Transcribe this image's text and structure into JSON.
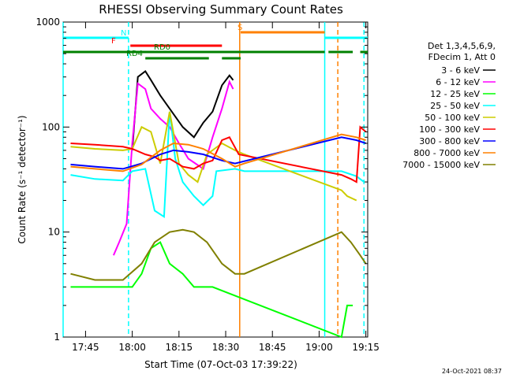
{
  "chart_data": {
    "type": "line",
    "title": "RHESSI Observing Summary Count Rates",
    "xlabel": "Start Time (07-Oct-03 17:39:22)",
    "ylabel": "Count Rate (s⁻¹ detector⁻¹)",
    "yscale": "log",
    "ylim": [
      1,
      1000
    ],
    "xlim_minutes": [
      17.63,
      19.26
    ],
    "x_ticks": [
      "17:45",
      "18:00",
      "18:15",
      "18:30",
      "18:45",
      "19:00",
      "19:15"
    ],
    "y_ticks": [
      "1",
      "10",
      "100",
      "1000"
    ],
    "legend_header": [
      "Det 1,3,4,5,6,9,",
      "FDecim 1, Att 0"
    ],
    "legend_position": "right",
    "footer_timestamp": "24-Oct-2021 08:37",
    "series": [
      {
        "name": "3 - 6 keV",
        "color": "#000000",
        "points": [
          [
            18.0,
            60
          ],
          [
            18.03,
            300
          ],
          [
            18.07,
            340
          ],
          [
            18.1,
            280
          ],
          [
            18.15,
            200
          ],
          [
            18.2,
            150
          ],
          [
            18.27,
            100
          ],
          [
            18.33,
            80
          ],
          [
            18.38,
            110
          ],
          [
            18.43,
            140
          ],
          [
            18.48,
            250
          ],
          [
            18.52,
            310
          ],
          [
            18.54,
            280
          ]
        ]
      },
      {
        "name": "6 - 12 keV",
        "color": "#ff00ff",
        "points": [
          [
            17.9,
            6
          ],
          [
            17.93,
            8
          ],
          [
            17.97,
            12
          ],
          [
            18.0,
            70
          ],
          [
            18.03,
            260
          ],
          [
            18.07,
            230
          ],
          [
            18.1,
            150
          ],
          [
            18.15,
            120
          ],
          [
            18.2,
            100
          ],
          [
            18.25,
            70
          ],
          [
            18.3,
            50
          ],
          [
            18.38,
            40
          ],
          [
            18.43,
            80
          ],
          [
            18.48,
            150
          ],
          [
            18.52,
            270
          ],
          [
            18.54,
            230
          ]
        ]
      },
      {
        "name": "12 - 25 keV",
        "color": "#00ff00",
        "points": [
          [
            17.67,
            3
          ],
          [
            18.0,
            3
          ],
          [
            18.05,
            4
          ],
          [
            18.1,
            7
          ],
          [
            18.15,
            8
          ],
          [
            18.2,
            5
          ],
          [
            18.27,
            4
          ],
          [
            18.33,
            3
          ],
          [
            18.43,
            3
          ],
          [
            19.12,
            1
          ],
          [
            19.15,
            2
          ],
          [
            19.18,
            2
          ]
        ]
      },
      {
        "name": "25 - 50 keV",
        "color": "#00ffff",
        "points": [
          [
            17.67,
            35
          ],
          [
            17.8,
            32
          ],
          [
            17.95,
            31
          ],
          [
            18.0,
            38
          ],
          [
            18.07,
            40
          ],
          [
            18.12,
            16
          ],
          [
            18.17,
            14
          ],
          [
            18.2,
            140
          ],
          [
            18.23,
            50
          ],
          [
            18.27,
            30
          ],
          [
            18.33,
            22
          ],
          [
            18.38,
            18
          ],
          [
            18.43,
            22
          ],
          [
            18.45,
            38
          ],
          [
            18.55,
            40
          ],
          [
            18.6,
            38
          ],
          [
            19.12,
            38
          ],
          [
            19.2,
            34
          ],
          [
            19.24,
            30
          ]
        ]
      },
      {
        "name": "50 - 100 keV",
        "color": "#cccc00",
        "points": [
          [
            17.67,
            65
          ],
          [
            17.8,
            62
          ],
          [
            17.95,
            60
          ],
          [
            18.0,
            62
          ],
          [
            18.05,
            100
          ],
          [
            18.1,
            90
          ],
          [
            18.15,
            45
          ],
          [
            18.2,
            140
          ],
          [
            18.25,
            45
          ],
          [
            18.3,
            35
          ],
          [
            18.35,
            30
          ],
          [
            18.4,
            55
          ],
          [
            18.48,
            70
          ],
          [
            18.55,
            60
          ],
          [
            18.6,
            55
          ],
          [
            19.12,
            25
          ],
          [
            19.15,
            22
          ],
          [
            19.2,
            20
          ]
        ]
      },
      {
        "name": "100 - 300 keV",
        "color": "#ff0000",
        "points": [
          [
            17.67,
            70
          ],
          [
            17.8,
            68
          ],
          [
            17.95,
            65
          ],
          [
            18.0,
            62
          ],
          [
            18.07,
            55
          ],
          [
            18.12,
            52
          ],
          [
            18.15,
            48
          ],
          [
            18.2,
            50
          ],
          [
            18.27,
            42
          ],
          [
            18.33,
            40
          ],
          [
            18.38,
            45
          ],
          [
            18.43,
            48
          ],
          [
            18.48,
            75
          ],
          [
            18.52,
            80
          ],
          [
            18.57,
            55
          ],
          [
            19.12,
            35
          ],
          [
            19.17,
            32
          ],
          [
            19.2,
            30
          ],
          [
            19.22,
            100
          ],
          [
            19.25,
            90
          ]
        ]
      },
      {
        "name": "300 - 800 keV",
        "color": "#0000ff",
        "points": [
          [
            17.67,
            44
          ],
          [
            17.8,
            42
          ],
          [
            17.95,
            40
          ],
          [
            18.05,
            45
          ],
          [
            18.15,
            55
          ],
          [
            18.22,
            60
          ],
          [
            18.3,
            58
          ],
          [
            18.38,
            55
          ],
          [
            18.48,
            48
          ],
          [
            18.55,
            45
          ],
          [
            19.12,
            80
          ],
          [
            19.2,
            75
          ],
          [
            19.25,
            70
          ]
        ]
      },
      {
        "name": "800 - 7000 keV",
        "color": "#ff8000",
        "points": [
          [
            17.67,
            42
          ],
          [
            17.8,
            40
          ],
          [
            17.95,
            38
          ],
          [
            18.05,
            44
          ],
          [
            18.15,
            60
          ],
          [
            18.22,
            70
          ],
          [
            18.3,
            68
          ],
          [
            18.38,
            62
          ],
          [
            18.48,
            50
          ],
          [
            18.55,
            42
          ],
          [
            18.6,
            45
          ],
          [
            19.12,
            85
          ],
          [
            19.2,
            80
          ],
          [
            19.25,
            75
          ]
        ]
      },
      {
        "name": "7000 - 15000 keV",
        "color": "#808000",
        "points": [
          [
            17.67,
            4
          ],
          [
            17.8,
            3.5
          ],
          [
            17.95,
            3.5
          ],
          [
            18.05,
            5
          ],
          [
            18.12,
            8
          ],
          [
            18.2,
            10
          ],
          [
            18.27,
            10.5
          ],
          [
            18.33,
            10
          ],
          [
            18.4,
            8
          ],
          [
            18.48,
            5
          ],
          [
            18.55,
            4
          ],
          [
            18.6,
            4
          ],
          [
            19.12,
            10
          ],
          [
            19.17,
            8
          ],
          [
            19.22,
            6
          ],
          [
            19.25,
            5
          ]
        ]
      }
    ],
    "flags": [
      {
        "label": "N",
        "color": "#00ffff",
        "segments": [
          [
            17.63,
            17.98
          ],
          [
            19.03,
            19.26
          ]
        ]
      },
      {
        "label": "S",
        "color": "#ff8000",
        "segments": [
          [
            18.58,
            19.03
          ]
        ]
      },
      {
        "label": "F",
        "color": "#ff0000",
        "segments": [
          [
            17.99,
            18.48
          ]
        ]
      },
      {
        "label": "RD0",
        "color": "#008000",
        "segments": [
          [
            17.63,
            19.03
          ],
          [
            19.05,
            19.18
          ],
          [
            19.22,
            19.26
          ]
        ]
      },
      {
        "label": "RD4",
        "color": "#008000",
        "segments": [
          [
            18.07,
            18.41
          ],
          [
            18.48,
            18.58
          ]
        ]
      }
    ],
    "vlines": [
      {
        "x": 17.63,
        "color": "#00ffff",
        "dashed": false
      },
      {
        "x": 17.98,
        "color": "#00ffff",
        "dashed": true
      },
      {
        "x": 18.575,
        "color": "#ff8000",
        "dashed": false
      },
      {
        "x": 19.03,
        "color": "#00ffff",
        "dashed": false
      },
      {
        "x": 19.1,
        "color": "#ff8000",
        "dashed": true
      },
      {
        "x": 19.24,
        "color": "#00ffff",
        "dashed": true
      }
    ]
  }
}
